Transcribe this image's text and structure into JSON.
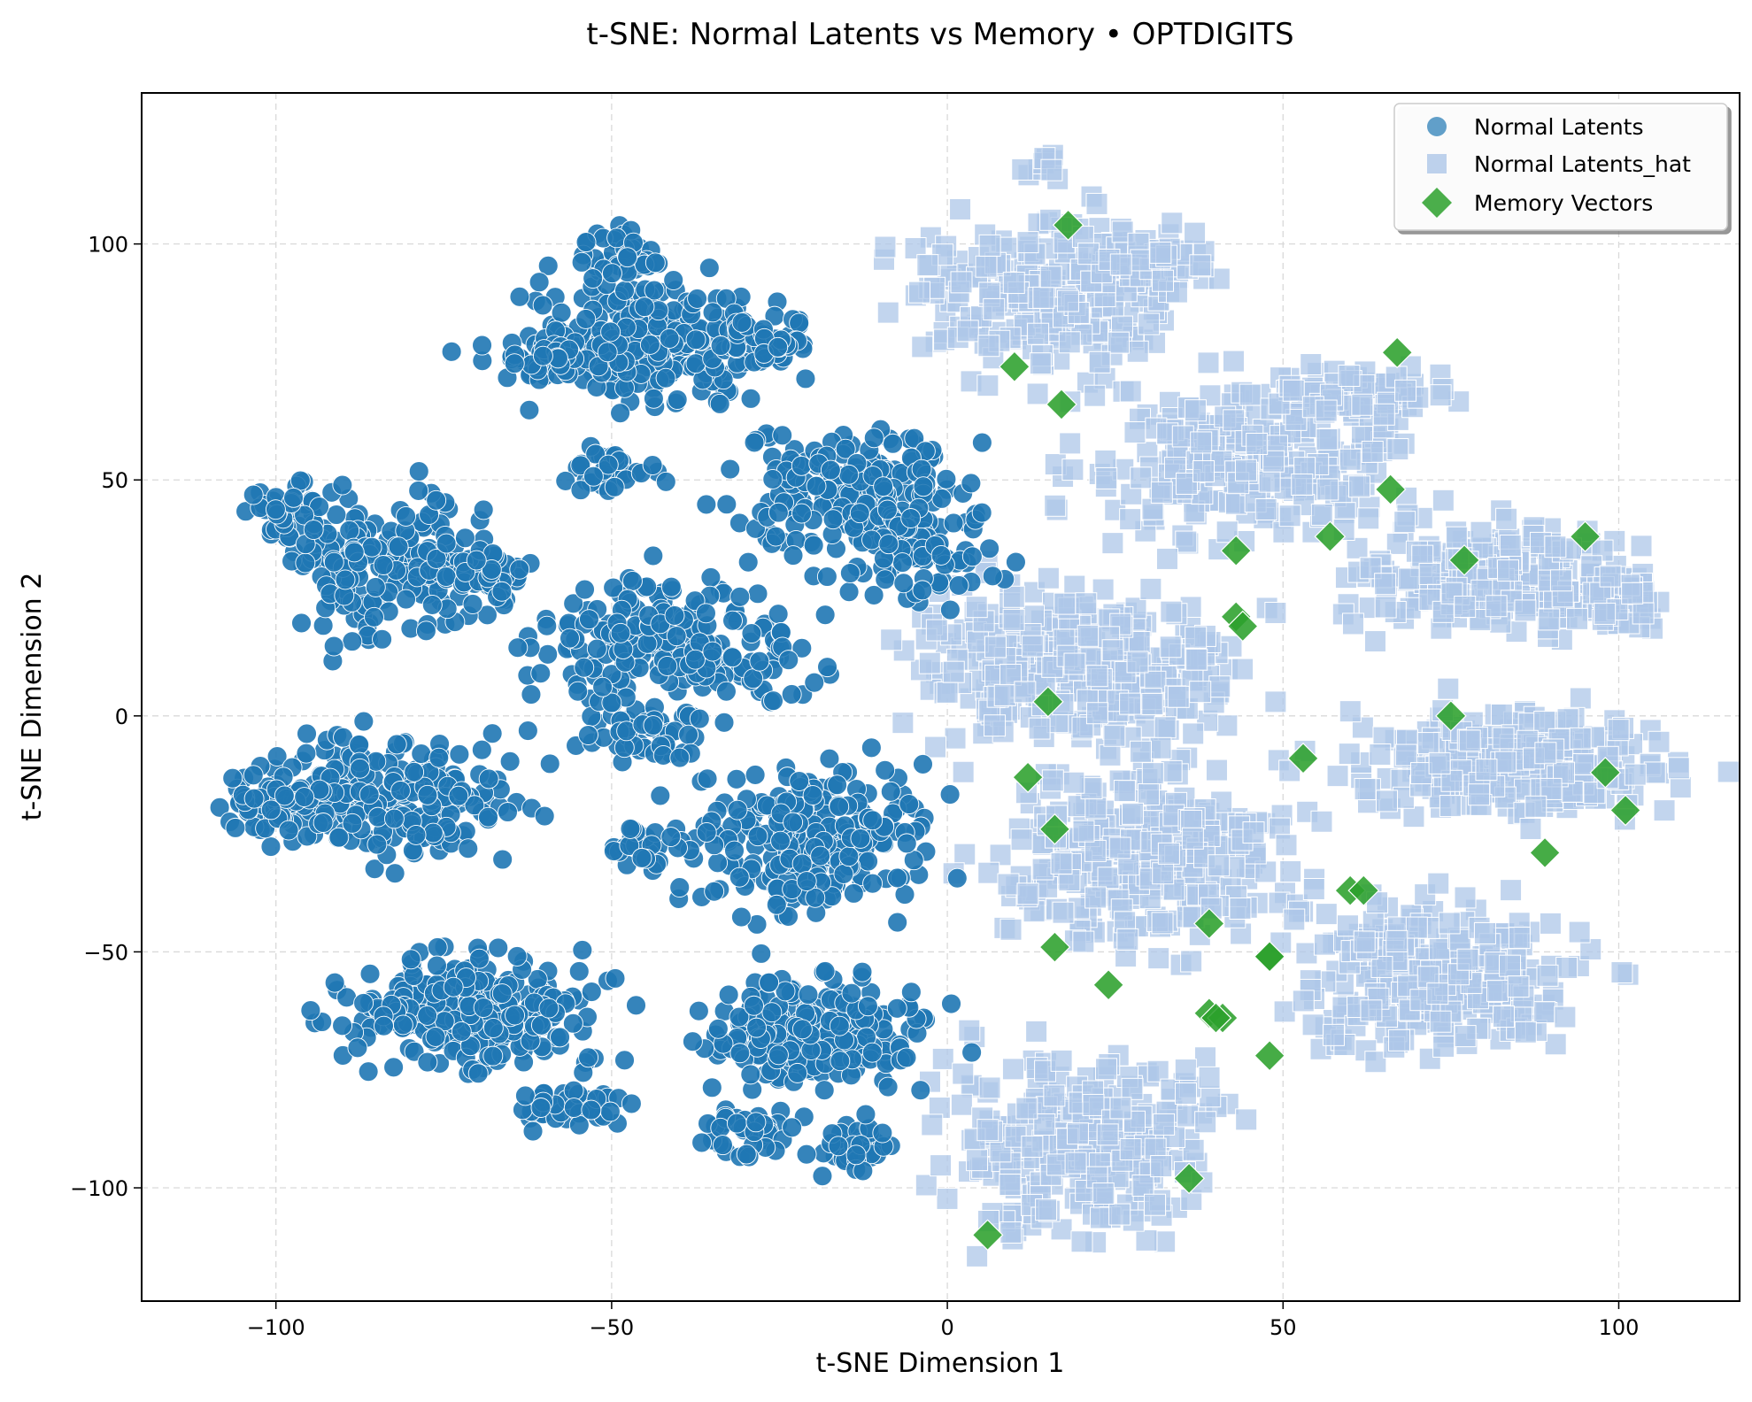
{
  "chart_data": {
    "type": "scatter",
    "title": "t-SNE: Normal Latents vs Memory • OPTDIGITS",
    "xlabel": "t-SNE Dimension 1",
    "ylabel": "t-SNE Dimension 2",
    "xlim": [
      -120,
      118
    ],
    "ylim": [
      -124,
      132
    ],
    "xticks": [
      -100,
      -50,
      0,
      50,
      100
    ],
    "yticks": [
      -100,
      -50,
      0,
      50,
      100
    ],
    "xtick_labels": [
      "−100",
      "−50",
      "0",
      "50",
      "100"
    ],
    "ytick_labels": [
      "−100",
      "−50",
      "0",
      "50",
      "100"
    ],
    "grid": true,
    "legend": {
      "position": "top-right",
      "entries": [
        "Normal Latents",
        "Normal Latents_hat",
        "Memory Vectors"
      ]
    },
    "colors": {
      "normal_latents": "#1f77b4",
      "normal_latents_hat": "#aec7e8",
      "memory_vectors": "#2ca02c"
    },
    "series": [
      {
        "name": "Normal Latents",
        "marker": "circle",
        "clusters": [
          {
            "center": [
              -46,
              80
            ],
            "spread": [
              12,
              10
            ],
            "n": 240
          },
          {
            "center": [
              -48,
              98
            ],
            "spread": [
              4,
              4
            ],
            "n": 45
          },
          {
            "center": [
              -59,
              76
            ],
            "spread": [
              8,
              3
            ],
            "n": 45
          },
          {
            "center": [
              -27,
              80
            ],
            "spread": [
              5,
              4
            ],
            "n": 50
          },
          {
            "center": [
              -50,
              52
            ],
            "spread": [
              5,
              4
            ],
            "n": 35
          },
          {
            "center": [
              -83,
              33
            ],
            "spread": [
              11,
              12
            ],
            "n": 190
          },
          {
            "center": [
              -98,
              42
            ],
            "spread": [
              4,
              5
            ],
            "n": 40
          },
          {
            "center": [
              -68,
              30
            ],
            "spread": [
              4,
              4
            ],
            "n": 35
          },
          {
            "center": [
              -41,
              15
            ],
            "spread": [
              14,
              10
            ],
            "n": 220
          },
          {
            "center": [
              -45,
              -2
            ],
            "spread": [
              6,
              5
            ],
            "n": 50
          },
          {
            "center": [
              -14,
              48
            ],
            "spread": [
              12,
              9
            ],
            "n": 190
          },
          {
            "center": [
              -5,
              35
            ],
            "spread": [
              8,
              8
            ],
            "n": 80
          },
          {
            "center": [
              -84,
              -17
            ],
            "spread": [
              15,
              9
            ],
            "n": 250
          },
          {
            "center": [
              -101,
              -19
            ],
            "spread": [
              4,
              4
            ],
            "n": 40
          },
          {
            "center": [
              -20,
              -26
            ],
            "spread": [
              13,
              11
            ],
            "n": 240
          },
          {
            "center": [
              -45,
              -28
            ],
            "spread": [
              4,
              3
            ],
            "n": 30
          },
          {
            "center": [
              -70,
              -62
            ],
            "spread": [
              14,
              9
            ],
            "n": 250
          },
          {
            "center": [
              -55,
              -83
            ],
            "spread": [
              6,
              3
            ],
            "n": 40
          },
          {
            "center": [
              -20,
              -68
            ],
            "spread": [
              12,
              9
            ],
            "n": 220
          },
          {
            "center": [
              -30,
              -88
            ],
            "spread": [
              5,
              4
            ],
            "n": 40
          },
          {
            "center": [
              -14,
              -92
            ],
            "spread": [
              4,
              4
            ],
            "n": 35
          }
        ]
      },
      {
        "name": "Normal Latents_hat",
        "marker": "square",
        "clusters": [
          {
            "center": [
              14,
              90
            ],
            "spread": [
              13,
              11
            ],
            "n": 240
          },
          {
            "center": [
              30,
              95
            ],
            "spread": [
              7,
              4
            ],
            "n": 60
          },
          {
            "center": [
              15,
              117
            ],
            "spread": [
              2,
              2
            ],
            "n": 10
          },
          {
            "center": [
              44,
              55
            ],
            "spread": [
              17,
              12
            ],
            "n": 260
          },
          {
            "center": [
              64,
              68
            ],
            "spread": [
              8,
              4
            ],
            "n": 60
          },
          {
            "center": [
              20,
              10
            ],
            "spread": [
              17,
              12
            ],
            "n": 300
          },
          {
            "center": [
              30,
              -30
            ],
            "spread": [
              16,
              14
            ],
            "n": 300
          },
          {
            "center": [
              20,
              -90
            ],
            "spread": [
              14,
              14
            ],
            "n": 280
          },
          {
            "center": [
              82,
              30
            ],
            "spread": [
              15,
              8
            ],
            "n": 230
          },
          {
            "center": [
              100,
              24
            ],
            "spread": [
              5,
              4
            ],
            "n": 40
          },
          {
            "center": [
              83,
              -10
            ],
            "spread": [
              17,
              8
            ],
            "n": 270
          },
          {
            "center": [
              73,
              -55
            ],
            "spread": [
              15,
              12
            ],
            "n": 260
          }
        ]
      },
      {
        "name": "Memory Vectors",
        "marker": "diamond",
        "points": [
          [
            18,
            104
          ],
          [
            10,
            74
          ],
          [
            17,
            66
          ],
          [
            67,
            77
          ],
          [
            66,
            48
          ],
          [
            57,
            38
          ],
          [
            77,
            33
          ],
          [
            95,
            38
          ],
          [
            43,
            35
          ],
          [
            43,
            21
          ],
          [
            44,
            19
          ],
          [
            15,
            3
          ],
          [
            75,
            0
          ],
          [
            53,
            -9
          ],
          [
            12,
            -13
          ],
          [
            98,
            -12
          ],
          [
            101,
            -20
          ],
          [
            16,
            -24
          ],
          [
            89,
            -29
          ],
          [
            60,
            -37
          ],
          [
            62,
            -37
          ],
          [
            39,
            -44
          ],
          [
            16,
            -49
          ],
          [
            48,
            -51
          ],
          [
            48,
            -51
          ],
          [
            24,
            -57
          ],
          [
            39,
            -63
          ],
          [
            41,
            -64
          ],
          [
            40,
            -64
          ],
          [
            48,
            -72
          ],
          [
            36,
            -98
          ],
          [
            6,
            -110
          ]
        ]
      }
    ]
  }
}
